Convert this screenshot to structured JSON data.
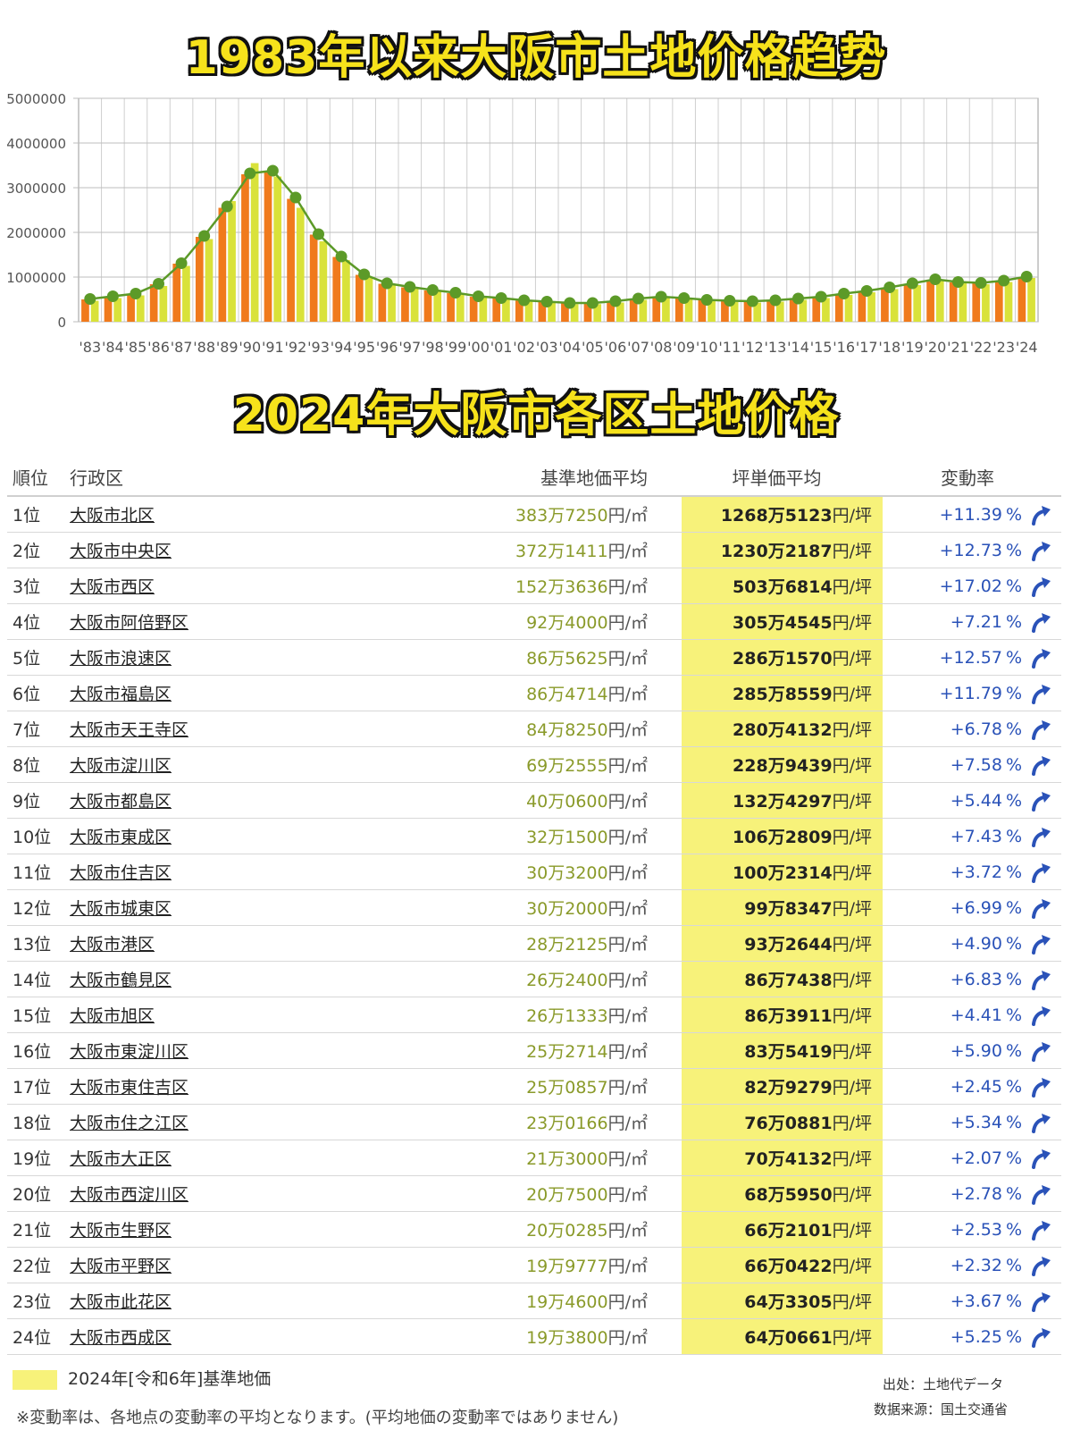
{
  "titles": {
    "chart_title": "1983年以来大阪市土地价格趋势",
    "table_title": "2024年大阪市各区土地价格"
  },
  "colors": {
    "bar_orange": "#f07a1c",
    "bar_yellow": "#d9e23a",
    "line_green": "#5c9a28",
    "highlight_yellow": "#f7f27a",
    "rate_blue": "#2a52b8"
  },
  "chart_data": {
    "type": "bar",
    "title": "1983年以来大阪市土地价格趋势",
    "xlabel": "",
    "ylabel": "",
    "ylim": [
      0,
      5000000
    ],
    "yticks": [
      "0",
      "1000000",
      "2000000",
      "3000000",
      "4000000",
      "5000000"
    ],
    "grid": true,
    "categories": [
      "'83",
      "'84",
      "'85",
      "'86",
      "'87",
      "'88",
      "'89",
      "'90",
      "'91",
      "'92",
      "'93",
      "'94",
      "'95",
      "'96",
      "'97",
      "'98",
      "'99",
      "'00",
      "'01",
      "'02",
      "'03",
      "'04",
      "'05",
      "'06",
      "'07",
      "'08",
      "'09",
      "'10",
      "'11",
      "'12",
      "'13",
      "'14",
      "'15",
      "'16",
      "'17",
      "'18",
      "'19",
      "'20",
      "'21",
      "'22",
      "'23",
      "'24"
    ],
    "series": [
      {
        "values": [
          500000,
          560000,
          620000,
          840000,
          1300000,
          1900000,
          2550000,
          3300000,
          3350000,
          2750000,
          1950000,
          1450000,
          1050000,
          850000,
          770000,
          700000,
          640000,
          560000,
          520000,
          470000,
          440000,
          410000,
          410000,
          450000,
          510000,
          550000,
          520000,
          480000,
          460000,
          450000,
          470000,
          510000,
          550000,
          620000,
          680000,
          760000,
          850000,
          940000,
          880000,
          860000,
          910000,
          1000000
        ]
      },
      {
        "values": [
          470000,
          530000,
          590000,
          800000,
          1250000,
          1850000,
          2700000,
          3550000,
          3250000,
          2550000,
          1800000,
          1380000,
          1000000,
          820000,
          740000,
          670000,
          610000,
          540000,
          500000,
          450000,
          420000,
          395000,
          395000,
          430000,
          490000,
          530000,
          500000,
          460000,
          440000,
          430000,
          450000,
          490000,
          530000,
          600000,
          660000,
          730000,
          820000,
          910000,
          860000,
          840000,
          890000,
          980000
        ]
      },
      {
        "values": [
          510000,
          570000,
          630000,
          850000,
          1310000,
          1920000,
          2580000,
          3320000,
          3380000,
          2780000,
          1960000,
          1460000,
          1060000,
          860000,
          780000,
          710000,
          650000,
          570000,
          530000,
          480000,
          450000,
          420000,
          420000,
          460000,
          520000,
          560000,
          530000,
          490000,
          470000,
          460000,
          480000,
          520000,
          560000,
          630000,
          690000,
          770000,
          860000,
          950000,
          890000,
          870000,
          920000,
          1010000
        ]
      }
    ]
  },
  "table": {
    "headers": {
      "rank": "順位",
      "name": "行政区",
      "base": "基準地価平均",
      "tsubo": "坪単価平均",
      "rate": "変動率"
    },
    "units": {
      "base": "円/㎡",
      "tsubo": "円/坪",
      "percent": "%"
    },
    "rows": [
      {
        "rank": "1位",
        "name": "大阪市北区",
        "base": "383万7250",
        "tsubo": "1268万5123",
        "rate": "+11.39"
      },
      {
        "rank": "2位",
        "name": "大阪市中央区",
        "base": "372万1411",
        "tsubo": "1230万2187",
        "rate": "+12.73"
      },
      {
        "rank": "3位",
        "name": "大阪市西区",
        "base": "152万3636",
        "tsubo": "503万6814",
        "rate": "+17.02"
      },
      {
        "rank": "4位",
        "name": "大阪市阿倍野区",
        "base": "92万4000",
        "tsubo": "305万4545",
        "rate": "+7.21"
      },
      {
        "rank": "5位",
        "name": "大阪市浪速区",
        "base": "86万5625",
        "tsubo": "286万1570",
        "rate": "+12.57"
      },
      {
        "rank": "6位",
        "name": "大阪市福島区",
        "base": "86万4714",
        "tsubo": "285万8559",
        "rate": "+11.79"
      },
      {
        "rank": "7位",
        "name": "大阪市天王寺区",
        "base": "84万8250",
        "tsubo": "280万4132",
        "rate": "+6.78"
      },
      {
        "rank": "8位",
        "name": "大阪市淀川区",
        "base": "69万2555",
        "tsubo": "228万9439",
        "rate": "+7.58"
      },
      {
        "rank": "9位",
        "name": "大阪市都島区",
        "base": "40万0600",
        "tsubo": "132万4297",
        "rate": "+5.44"
      },
      {
        "rank": "10位",
        "name": "大阪市東成区",
        "base": "32万1500",
        "tsubo": "106万2809",
        "rate": "+7.43"
      },
      {
        "rank": "11位",
        "name": "大阪市住吉区",
        "base": "30万3200",
        "tsubo": "100万2314",
        "rate": "+3.72"
      },
      {
        "rank": "12位",
        "name": "大阪市城東区",
        "base": "30万2000",
        "tsubo": "99万8347",
        "rate": "+6.99"
      },
      {
        "rank": "13位",
        "name": "大阪市港区",
        "base": "28万2125",
        "tsubo": "93万2644",
        "rate": "+4.90"
      },
      {
        "rank": "14位",
        "name": "大阪市鶴見区",
        "base": "26万2400",
        "tsubo": "86万7438",
        "rate": "+6.83"
      },
      {
        "rank": "15位",
        "name": "大阪市旭区",
        "base": "26万1333",
        "tsubo": "86万3911",
        "rate": "+4.41"
      },
      {
        "rank": "16位",
        "name": "大阪市東淀川区",
        "base": "25万2714",
        "tsubo": "83万5419",
        "rate": "+5.90"
      },
      {
        "rank": "17位",
        "name": "大阪市東住吉区",
        "base": "25万0857",
        "tsubo": "82万9279",
        "rate": "+2.45"
      },
      {
        "rank": "18位",
        "name": "大阪市住之江区",
        "base": "23万0166",
        "tsubo": "76万0881",
        "rate": "+5.34"
      },
      {
        "rank": "19位",
        "name": "大阪市大正区",
        "base": "21万3000",
        "tsubo": "70万4132",
        "rate": "+2.07"
      },
      {
        "rank": "20位",
        "name": "大阪市西淀川区",
        "base": "20万7500",
        "tsubo": "68万5950",
        "rate": "+2.78"
      },
      {
        "rank": "21位",
        "name": "大阪市生野区",
        "base": "20万0285",
        "tsubo": "66万2101",
        "rate": "+2.53"
      },
      {
        "rank": "22位",
        "name": "大阪市平野区",
        "base": "19万9777",
        "tsubo": "66万0422",
        "rate": "+2.32"
      },
      {
        "rank": "23位",
        "name": "大阪市此花区",
        "base": "19万4600",
        "tsubo": "64万3305",
        "rate": "+3.67"
      },
      {
        "rank": "24位",
        "name": "大阪市西成区",
        "base": "19万3800",
        "tsubo": "64万0661",
        "rate": "+5.25"
      }
    ],
    "arrow_icon": "up-right-arrow-icon"
  },
  "legend": {
    "label": "2024年[令和6年]基準地価"
  },
  "footnote": "※変動率は、各地点の変動率の平均となります。(平均地価の変動率ではありません)",
  "source": {
    "line1": "出处：土地代データ",
    "line2": "数据来源：国土交通省"
  }
}
